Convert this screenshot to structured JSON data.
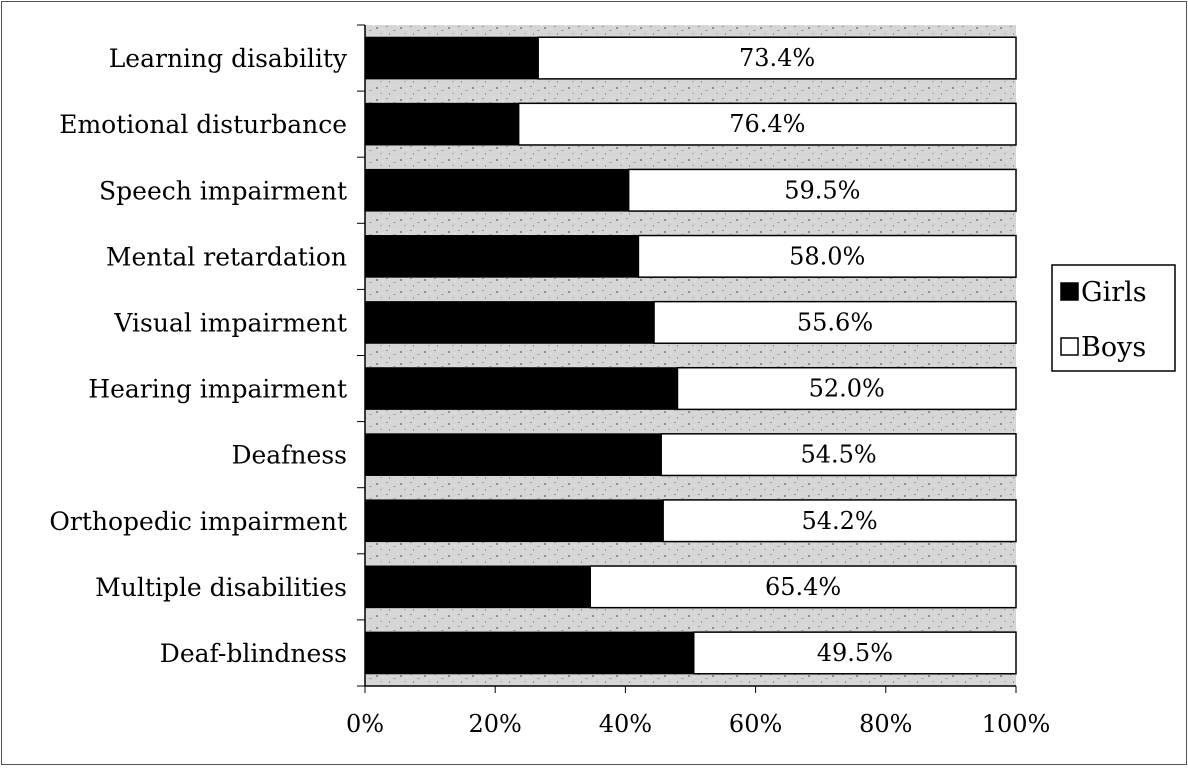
{
  "chart_data": {
    "type": "bar",
    "orientation": "horizontal",
    "stacked": "percent",
    "categories": [
      "Learning disability",
      "Emotional disturbance",
      "Speech impairment",
      "Mental retardation",
      "Visual impairment",
      "Hearing impairment",
      "Deafness",
      "Orthopedic impairment",
      "Multiple disabilities",
      "Deaf-blindness"
    ],
    "series": [
      {
        "name": "Girls",
        "color": "#000000",
        "values": [
          26.6,
          23.6,
          40.5,
          42.0,
          44.4,
          48.0,
          45.5,
          45.8,
          34.6,
          50.5
        ]
      },
      {
        "name": "Boys",
        "color": "#ffffff",
        "values": [
          73.4,
          76.4,
          59.5,
          58.0,
          55.6,
          52.0,
          54.5,
          54.2,
          65.4,
          49.5
        ]
      }
    ],
    "data_labels": [
      "73.4%",
      "76.4%",
      "59.5%",
      "58.0%",
      "55.6%",
      "52.0%",
      "54.5%",
      "54.2%",
      "65.4%",
      "49.5%"
    ],
    "x_ticks": [
      "0%",
      "20%",
      "40%",
      "60%",
      "80%",
      "100%"
    ],
    "xlim": [
      0,
      100
    ],
    "legend_position": "right",
    "grid": false,
    "plot_background": "#c8c8c8"
  }
}
